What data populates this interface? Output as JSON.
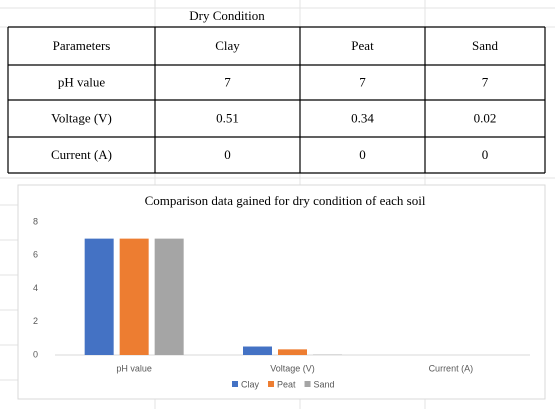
{
  "table": {
    "title": "Dry Condition",
    "header": [
      "Parameters",
      "Clay",
      "Peat",
      "Sand"
    ],
    "rows": [
      [
        "pH value",
        "7",
        "7",
        "7"
      ],
      [
        "Voltage (V)",
        "0.51",
        "0.34",
        "0.02"
      ],
      [
        "Current (A)",
        "0",
        "0",
        "0"
      ]
    ]
  },
  "chart_data": {
    "type": "bar",
    "title": "Comparison data gained for dry condition of each soil",
    "categories": [
      "pH value",
      "Voltage (V)",
      "Current (A)"
    ],
    "series": [
      {
        "name": "Clay",
        "color": "#4472c4",
        "values": [
          7,
          0.51,
          0
        ]
      },
      {
        "name": "Peat",
        "color": "#ed7d31",
        "values": [
          7,
          0.34,
          0
        ]
      },
      {
        "name": "Sand",
        "color": "#a5a5a5",
        "values": [
          7,
          0.02,
          0
        ]
      }
    ],
    "ylim": [
      0,
      8
    ],
    "yticks": [
      0,
      2,
      4,
      6,
      8
    ],
    "grid": false,
    "legend": "bottom"
  }
}
